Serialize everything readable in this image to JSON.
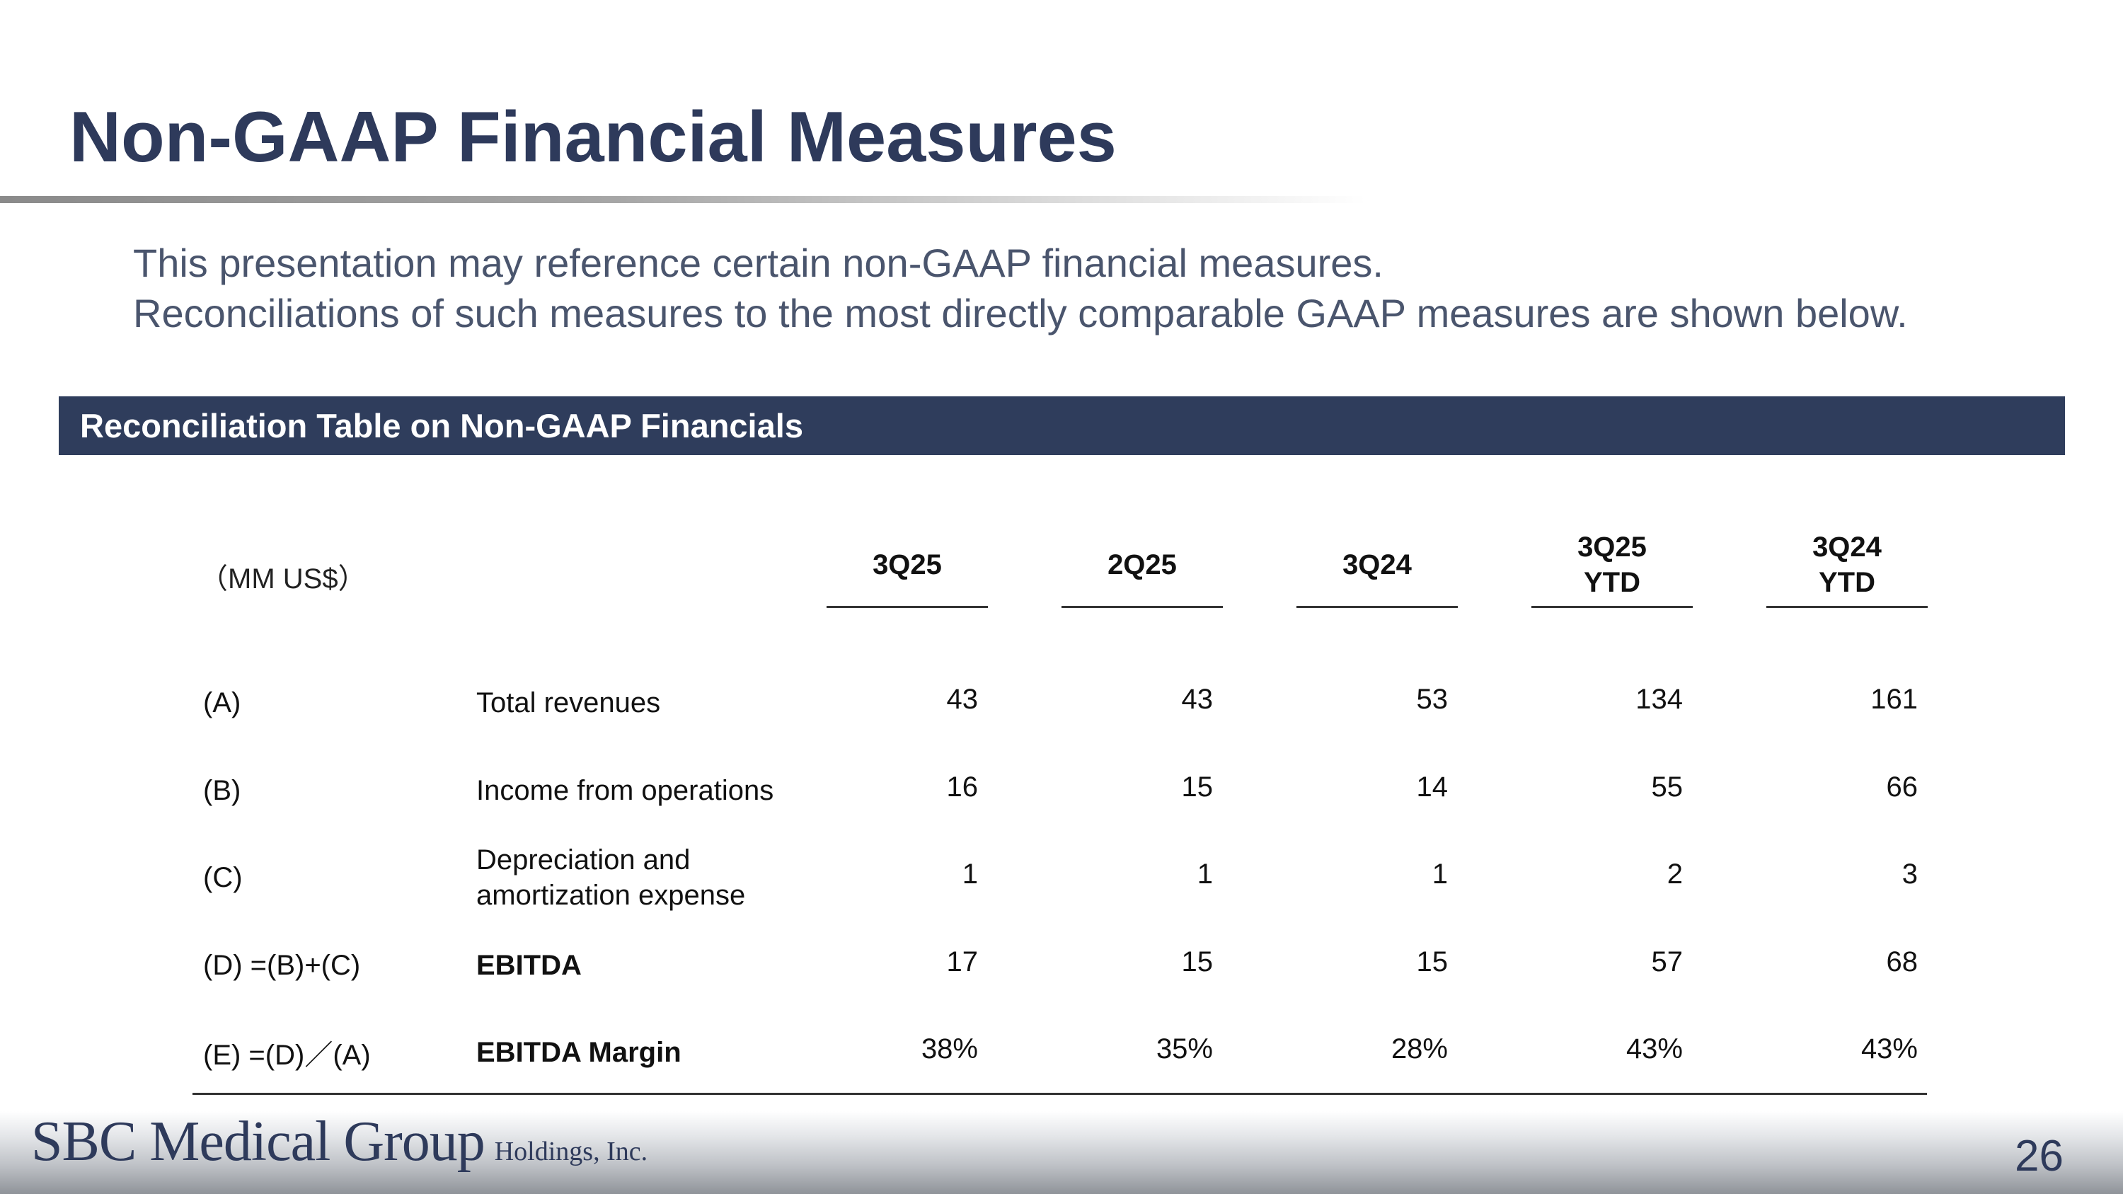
{
  "title": "Non-GAAP Financial Measures",
  "intro": [
    "This presentation may reference certain non-GAAP financial measures.",
    "Reconciliations of such measures to the most directly comparable GAAP measures are shown below."
  ],
  "section_title": "Reconciliation Table on Non-GAAP Financials",
  "table": {
    "unit_label": "（MM US$）",
    "columns": [
      "3Q25",
      "2Q25",
      "3Q24",
      "3Q25\nYTD",
      "3Q24\nYTD"
    ],
    "rows": [
      {
        "code": "(A)",
        "label": "Total revenues",
        "values": [
          "43",
          "43",
          "53",
          "134",
          "161"
        ]
      },
      {
        "code": "(B)",
        "label": "Income from operations",
        "values": [
          "16",
          "15",
          "14",
          "55",
          "66"
        ]
      },
      {
        "code": "(C)",
        "label": "Depreciation and amortization expense",
        "values": [
          "1",
          "1",
          "1",
          "2",
          "3"
        ]
      },
      {
        "code": "(D)  =(B)+(C)",
        "label": "EBITDA",
        "values": [
          "17",
          "15",
          "15",
          "57",
          "68"
        ]
      },
      {
        "code": "(E)  =(D)／(A)",
        "label": "EBITDA Margin",
        "values": [
          "38%",
          "35%",
          "28%",
          "43%",
          "43%"
        ]
      }
    ]
  },
  "footer": {
    "logo_text": "SBC Medical Group",
    "logo_subtext": "Holdings, Inc.",
    "page_number": "26"
  },
  "colors": {
    "title": "#2e3a5b",
    "banner": "#2f3d5c",
    "intro_text": "#4a556d"
  }
}
